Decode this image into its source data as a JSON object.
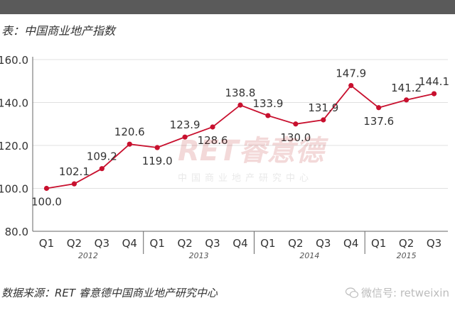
{
  "title": "表：中国商业地产指数",
  "source": "数据来源：RET 睿意德中国商业地产研究中心",
  "wechat": "微信号: retweixin",
  "watermark": {
    "main": "RET睿意德",
    "sub": "中国商业地产研究中心"
  },
  "colors": {
    "line": "#c8102e",
    "axis": "#666666",
    "grid": "#e0e0e0",
    "text": "#333333"
  },
  "chart_data": {
    "type": "line",
    "categories": [
      "Q1",
      "Q2",
      "Q3",
      "Q4",
      "Q1",
      "Q2",
      "Q3",
      "Q4",
      "Q1",
      "Q2",
      "Q3",
      "Q4",
      "Q1",
      "Q2",
      "Q3"
    ],
    "years": [
      {
        "label": "2012",
        "quarters": 4
      },
      {
        "label": "2013",
        "quarters": 4
      },
      {
        "label": "2014",
        "quarters": 4
      },
      {
        "label": "2015",
        "quarters": 3
      }
    ],
    "values": [
      100.0,
      102.1,
      109.2,
      120.6,
      119.0,
      123.9,
      128.6,
      138.8,
      133.9,
      130.0,
      131.9,
      147.9,
      137.6,
      141.2,
      144.1
    ],
    "labels": [
      "100.0",
      "102.1",
      "109.2",
      "120.6",
      "119.0",
      "123.9",
      "128.6",
      "138.8",
      "133.9",
      "130.0",
      "131.9",
      "147.9",
      "137.6",
      "141.2",
      "144.1"
    ],
    "ylim": [
      80,
      160
    ],
    "yticks": [
      "80.0",
      "100.0",
      "120.0",
      "140.0",
      "160.0"
    ],
    "grid": "horizontal",
    "legend": "none"
  }
}
